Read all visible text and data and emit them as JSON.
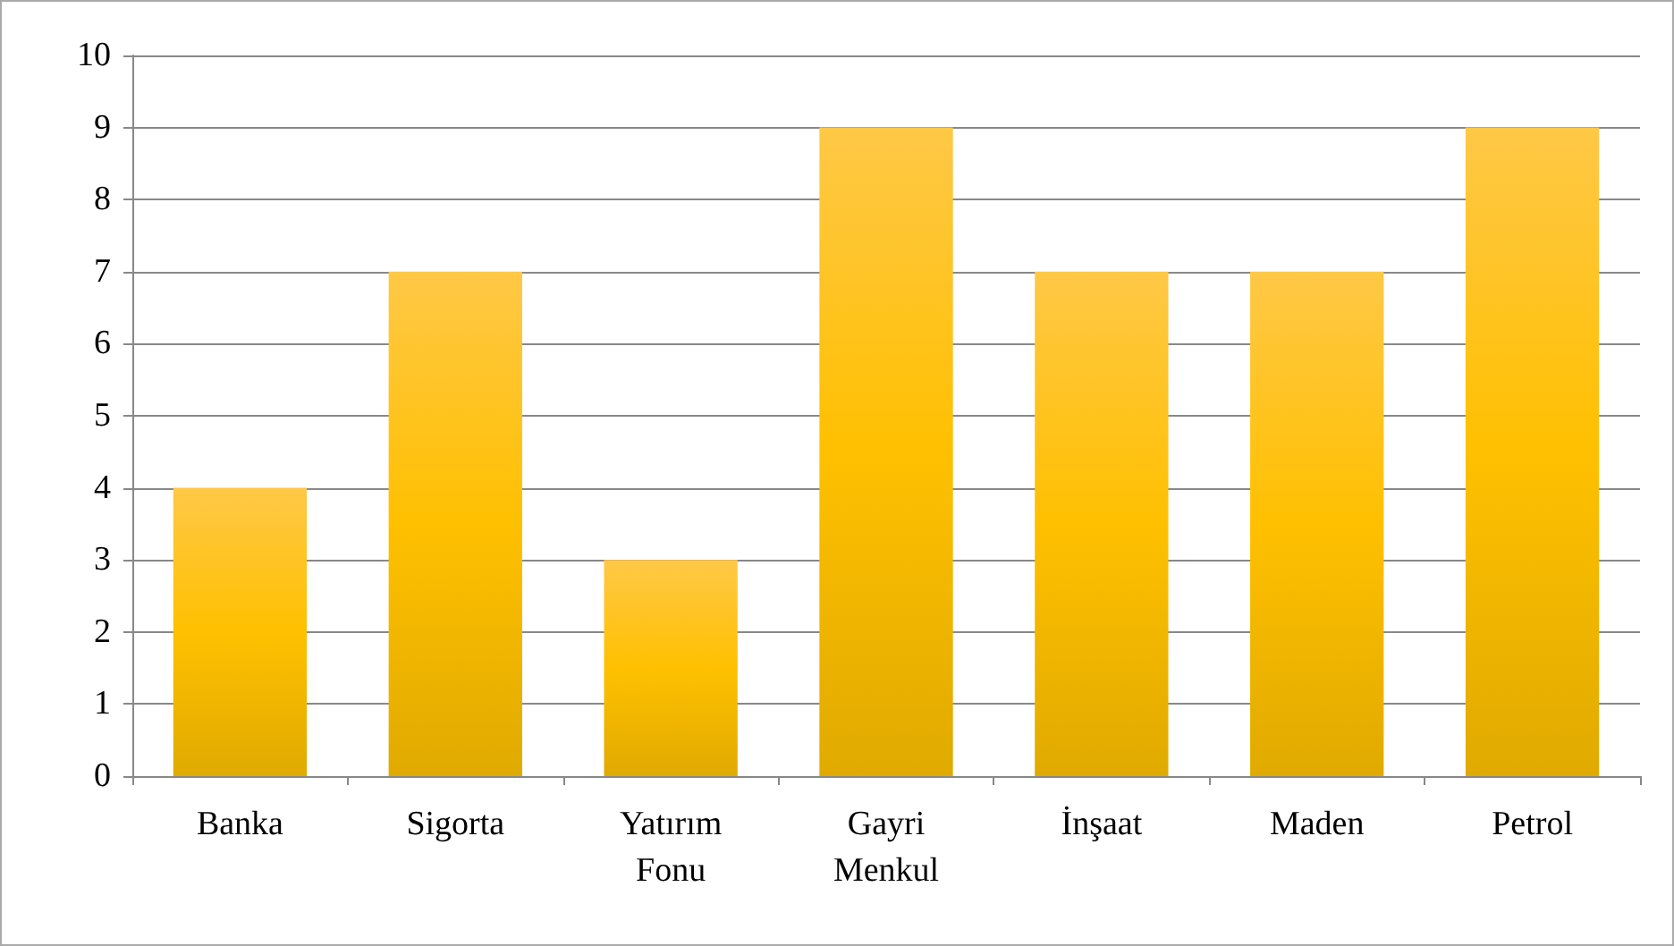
{
  "chart_data": {
    "type": "bar",
    "categories": [
      "Banka",
      "Sigorta",
      "Yatırım Fonu",
      "Gayri Menkul",
      "İnşaat",
      "Maden",
      "Petrol"
    ],
    "values": [
      4,
      7,
      3,
      9,
      7,
      7,
      9
    ],
    "color": "#ffc000",
    "ylim": [
      0,
      10
    ],
    "yticks": [
      0,
      1,
      2,
      3,
      4,
      5,
      6,
      7,
      8,
      9,
      10
    ],
    "grid": "y"
  }
}
